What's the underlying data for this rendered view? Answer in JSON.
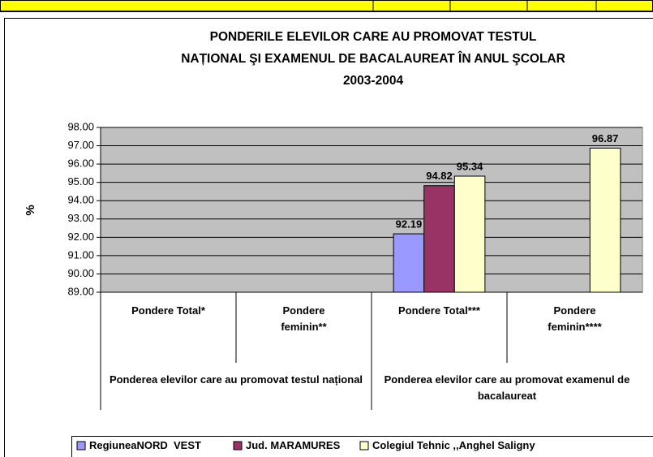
{
  "chart_data": {
    "type": "bar",
    "title": [
      "PONDERILE ELEVILOR CARE AU PROMOVAT TESTUL",
      "NAȚIONAL ŞI EXAMENUL DE BACALAUREAT ÎN ANUL ŞCOLAR",
      "2003-2004"
    ],
    "y_label": "%",
    "categories": [
      "Pondere Total*",
      "Pondere feminin**",
      "Pondere Total***",
      "Pondere feminin****"
    ],
    "groups": [
      {
        "label": "Ponderea elevilor care au promovat testul național",
        "span": 2
      },
      {
        "label": "Ponderea elevilor care au promovat examenul de bacalaureat",
        "span": 2
      }
    ],
    "series": [
      {
        "name": "RegiuneaNORD  VEST",
        "color": "#9999ff",
        "values": [
          null,
          null,
          92.19,
          null
        ]
      },
      {
        "name": "Jud. MARAMURES",
        "color": "#993366",
        "values": [
          null,
          null,
          94.82,
          null
        ]
      },
      {
        "name": "Colegiul Tehnic ,,Anghel Saligny",
        "color": "#ffffcc",
        "values": [
          null,
          null,
          95.34,
          96.87
        ]
      }
    ],
    "ylim": [
      89,
      98
    ],
    "yticks": [
      {
        "value": 89,
        "label": "89.00"
      },
      {
        "value": 90,
        "label": "90.00"
      },
      {
        "value": 91,
        "label": "91.00"
      },
      {
        "value": 92,
        "label": "92.00"
      },
      {
        "value": 93,
        "label": "93.00"
      },
      {
        "value": 94,
        "label": "94.00"
      },
      {
        "value": 95,
        "label": "95.00"
      },
      {
        "value": 96,
        "label": "96.00"
      },
      {
        "value": 97,
        "label": "97.00"
      },
      {
        "value": 98,
        "label": "98.00"
      }
    ],
    "grid": true,
    "plot_background": "#c0c0c0",
    "legend": "bottom"
  }
}
